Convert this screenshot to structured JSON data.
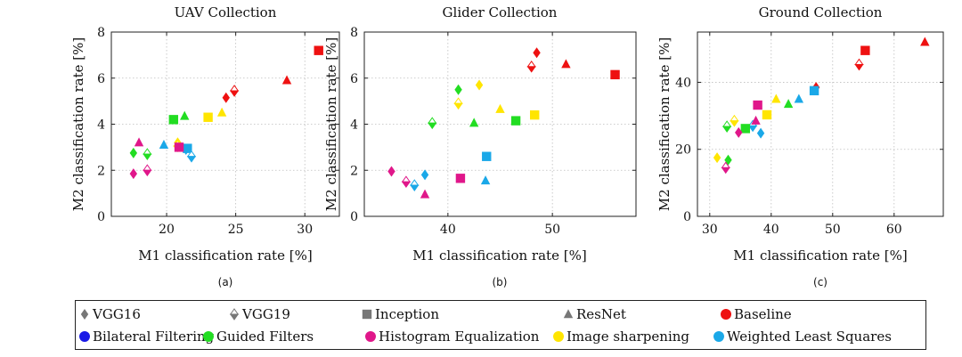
{
  "legend": {
    "models": [
      {
        "label": "VGG16",
        "marker": "diamond"
      },
      {
        "label": "VGG19",
        "marker": "diamond-half"
      },
      {
        "label": "Inception",
        "marker": "square"
      },
      {
        "label": "ResNet",
        "marker": "triangle"
      }
    ],
    "methods": [
      {
        "label": "Baseline",
        "color": "#ee1111"
      },
      {
        "label": "Bilateral Filtering",
        "color": "#1a1ae6"
      },
      {
        "label": "Guided Filters",
        "color": "#22dd22"
      },
      {
        "label": "Histogram Equalization",
        "color": "#e0178a"
      },
      {
        "label": "Image sharpening",
        "color": "#ffe500"
      },
      {
        "label": "Weighted Least Squares",
        "color": "#1aa8e8"
      }
    ]
  },
  "chart_data": [
    {
      "type": "scatter",
      "title": "UAV Collection",
      "xlabel": "M1 classification rate [%]",
      "ylabel": "M2 classification rate [%]",
      "sublabel": "(a)",
      "xlim": [
        16,
        32.5
      ],
      "ylim": [
        0,
        8
      ],
      "xticks": [
        20,
        25,
        30
      ],
      "yticks": [
        0,
        2,
        4,
        6,
        8
      ],
      "points": [
        {
          "method": "Baseline",
          "model": "Inception",
          "x": 31.0,
          "y": 7.2
        },
        {
          "method": "Baseline",
          "model": "ResNet",
          "x": 28.7,
          "y": 5.9
        },
        {
          "method": "Baseline",
          "model": "VGG19",
          "x": 24.9,
          "y": 5.45
        },
        {
          "method": "Baseline",
          "model": "VGG16",
          "x": 24.3,
          "y": 5.15
        },
        {
          "method": "Image sharpening",
          "model": "Inception",
          "x": 23.0,
          "y": 4.3
        },
        {
          "method": "Image sharpening",
          "model": "ResNet",
          "x": 24.0,
          "y": 4.5
        },
        {
          "method": "Image sharpening",
          "model": "VGG16",
          "x": 20.8,
          "y": 3.2
        },
        {
          "method": "Image sharpening",
          "model": "VGG19",
          "x": 20.8,
          "y": 3.05
        },
        {
          "method": "Guided Filters",
          "model": "Inception",
          "x": 20.5,
          "y": 4.2
        },
        {
          "method": "Guided Filters",
          "model": "ResNet",
          "x": 21.3,
          "y": 4.35
        },
        {
          "method": "Guided Filters",
          "model": "VGG16",
          "x": 17.6,
          "y": 2.75
        },
        {
          "method": "Guided Filters",
          "model": "VGG19",
          "x": 18.6,
          "y": 2.7
        },
        {
          "method": "Weighted Least Squares",
          "model": "ResNet",
          "x": 19.8,
          "y": 3.1
        },
        {
          "method": "Weighted Least Squares",
          "model": "Inception",
          "x": 21.5,
          "y": 2.95
        },
        {
          "method": "Weighted Least Squares",
          "model": "VGG19",
          "x": 21.8,
          "y": 2.6
        },
        {
          "method": "Weighted Least Squares",
          "model": "VGG16",
          "x": 21.4,
          "y": 2.9
        },
        {
          "method": "Histogram Equalization",
          "model": "ResNet",
          "x": 18.0,
          "y": 3.2
        },
        {
          "method": "Histogram Equalization",
          "model": "Inception",
          "x": 20.9,
          "y": 3.0
        },
        {
          "method": "Histogram Equalization",
          "model": "VGG19",
          "x": 18.6,
          "y": 2.0
        },
        {
          "method": "Histogram Equalization",
          "model": "VGG16",
          "x": 17.6,
          "y": 1.85
        }
      ]
    },
    {
      "type": "scatter",
      "title": "Glider Collection",
      "xlabel": "M1 classification rate [%]",
      "ylabel": "M2 classification rate [%]",
      "sublabel": "(b)",
      "xlim": [
        32,
        58
      ],
      "ylim": [
        0,
        8
      ],
      "xticks": [
        40,
        50
      ],
      "yticks": [
        0,
        2,
        4,
        6,
        8
      ],
      "points": [
        {
          "method": "Baseline",
          "model": "Inception",
          "x": 56.0,
          "y": 6.15
        },
        {
          "method": "Baseline",
          "model": "ResNet",
          "x": 51.3,
          "y": 6.6
        },
        {
          "method": "Baseline",
          "model": "VGG16",
          "x": 48.5,
          "y": 7.1
        },
        {
          "method": "Baseline",
          "model": "VGG19",
          "x": 48.0,
          "y": 6.5
        },
        {
          "method": "Image sharpening",
          "model": "VGG16",
          "x": 43.0,
          "y": 5.7
        },
        {
          "method": "Image sharpening",
          "model": "VGG19",
          "x": 41.0,
          "y": 4.9
        },
        {
          "method": "Image sharpening",
          "model": "ResNet",
          "x": 45.0,
          "y": 4.65
        },
        {
          "method": "Image sharpening",
          "model": "Inception",
          "x": 48.3,
          "y": 4.4
        },
        {
          "method": "Guided Filters",
          "model": "VGG16",
          "x": 41.0,
          "y": 5.5
        },
        {
          "method": "Guided Filters",
          "model": "VGG19",
          "x": 38.5,
          "y": 4.05
        },
        {
          "method": "Guided Filters",
          "model": "ResNet",
          "x": 42.5,
          "y": 4.05
        },
        {
          "method": "Guided Filters",
          "model": "Inception",
          "x": 46.5,
          "y": 4.15
        },
        {
          "method": "Weighted Least Squares",
          "model": "Inception",
          "x": 43.7,
          "y": 2.6
        },
        {
          "method": "Weighted Least Squares",
          "model": "ResNet",
          "x": 43.6,
          "y": 1.55
        },
        {
          "method": "Weighted Least Squares",
          "model": "VGG16",
          "x": 37.8,
          "y": 1.8
        },
        {
          "method": "Weighted Least Squares",
          "model": "VGG19",
          "x": 36.8,
          "y": 1.35
        },
        {
          "method": "Histogram Equalization",
          "model": "VGG16",
          "x": 34.6,
          "y": 1.95
        },
        {
          "method": "Histogram Equalization",
          "model": "VGG19",
          "x": 36.0,
          "y": 1.5
        },
        {
          "method": "Histogram Equalization",
          "model": "Inception",
          "x": 41.2,
          "y": 1.65
        },
        {
          "method": "Histogram Equalization",
          "model": "ResNet",
          "x": 37.8,
          "y": 0.95
        }
      ]
    },
    {
      "type": "scatter",
      "title": "Ground Collection",
      "xlabel": "M1 classification rate [%]",
      "ylabel": "M2 classification rate [%]",
      "sublabel": "(c)",
      "xlim": [
        28,
        68
      ],
      "ylim": [
        0,
        55
      ],
      "xticks": [
        30,
        40,
        50,
        60
      ],
      "yticks": [
        0,
        20,
        40
      ],
      "points": [
        {
          "method": "Baseline",
          "model": "ResNet",
          "x": 65.0,
          "y": 52.0
        },
        {
          "method": "Baseline",
          "model": "Inception",
          "x": 55.3,
          "y": 49.5
        },
        {
          "method": "Baseline",
          "model": "VGG19",
          "x": 54.3,
          "y": 45.3
        },
        {
          "method": "Baseline",
          "model": "VGG16",
          "x": 47.3,
          "y": 38.5
        },
        {
          "method": "Weighted Least Squares",
          "model": "Inception",
          "x": 47.0,
          "y": 37.5
        },
        {
          "method": "Weighted Least Squares",
          "model": "ResNet",
          "x": 44.5,
          "y": 35.0
        },
        {
          "method": "Weighted Least Squares",
          "model": "VGG16",
          "x": 38.3,
          "y": 24.8
        },
        {
          "method": "Weighted Least Squares",
          "model": "VGG19",
          "x": 37.0,
          "y": 27.0
        },
        {
          "method": "Image sharpening",
          "model": "ResNet",
          "x": 40.8,
          "y": 35.0
        },
        {
          "method": "Image sharpening",
          "model": "Inception",
          "x": 39.3,
          "y": 30.3
        },
        {
          "method": "Image sharpening",
          "model": "VGG19",
          "x": 34.0,
          "y": 28.5
        },
        {
          "method": "Image sharpening",
          "model": "VGG16",
          "x": 31.2,
          "y": 17.5
        },
        {
          "method": "Guided Filters",
          "model": "ResNet",
          "x": 42.8,
          "y": 33.5
        },
        {
          "method": "Guided Filters",
          "model": "Inception",
          "x": 35.8,
          "y": 26.2
        },
        {
          "method": "Guided Filters",
          "model": "VGG19",
          "x": 32.8,
          "y": 26.8
        },
        {
          "method": "Guided Filters",
          "model": "VGG16",
          "x": 33.0,
          "y": 16.8
        },
        {
          "method": "Histogram Equalization",
          "model": "Inception",
          "x": 37.8,
          "y": 33.2
        },
        {
          "method": "Histogram Equalization",
          "model": "ResNet",
          "x": 37.5,
          "y": 28.5
        },
        {
          "method": "Histogram Equalization",
          "model": "VGG16",
          "x": 34.7,
          "y": 25.0
        },
        {
          "method": "Histogram Equalization",
          "model": "VGG19",
          "x": 32.6,
          "y": 14.5
        }
      ]
    }
  ]
}
